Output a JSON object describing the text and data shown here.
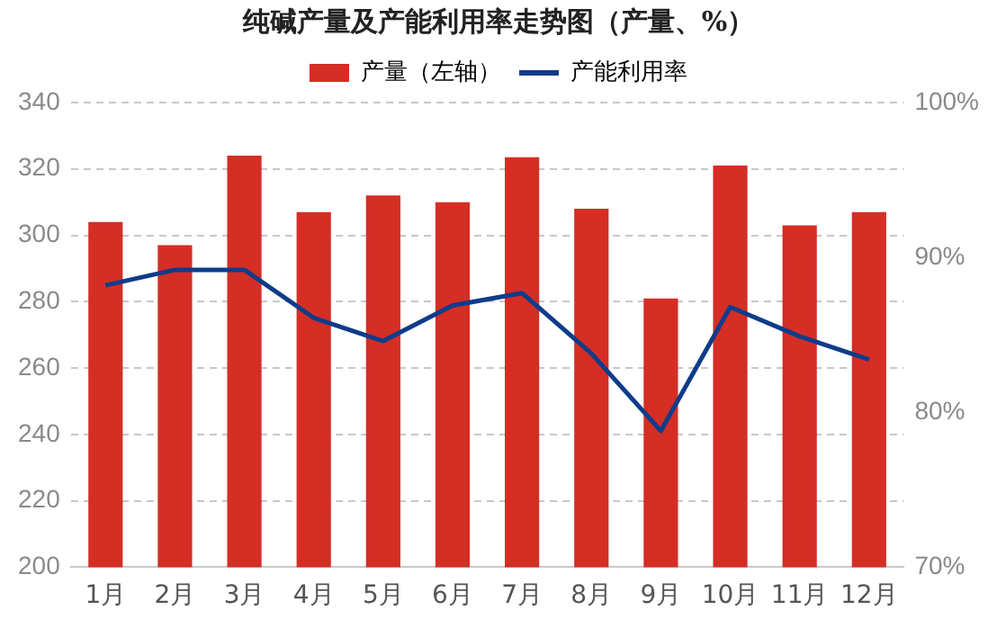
{
  "chart_data": {
    "type": "bar",
    "title": "纯碱产量及产能利用率走势图（产量、%）",
    "categories": [
      "1月",
      "2月",
      "3月",
      "4月",
      "5月",
      "6月",
      "7月",
      "8月",
      "9月",
      "10月",
      "11月",
      "12月"
    ],
    "series": [
      {
        "name": "产量（左轴）",
        "color": "#d42e25",
        "values": [
          304,
          297,
          324,
          307,
          312,
          310,
          323.5,
          308,
          281,
          321,
          303,
          307
        ]
      },
      {
        "name": "产能利用率",
        "type": "line",
        "axis": "y2",
        "color": "#0f3c8a",
        "values": [
          88.2,
          89.2,
          89.2,
          86.1,
          84.6,
          86.9,
          87.7,
          83.8,
          78.8,
          86.8,
          84.9,
          83.4
        ]
      }
    ],
    "ylim": [
      200,
      340
    ],
    "yticks": [
      200,
      220,
      240,
      260,
      280,
      300,
      320,
      340
    ],
    "y2lim": [
      70,
      100
    ],
    "y2ticks": [
      {
        "value": 70,
        "label": "70%"
      },
      {
        "value": 80,
        "label": "80%"
      },
      {
        "value": 90,
        "label": "90%"
      },
      {
        "value": 100,
        "label": "100%"
      }
    ],
    "grid": "y",
    "legend": "top",
    "marker": "none",
    "line_style": "solid"
  }
}
